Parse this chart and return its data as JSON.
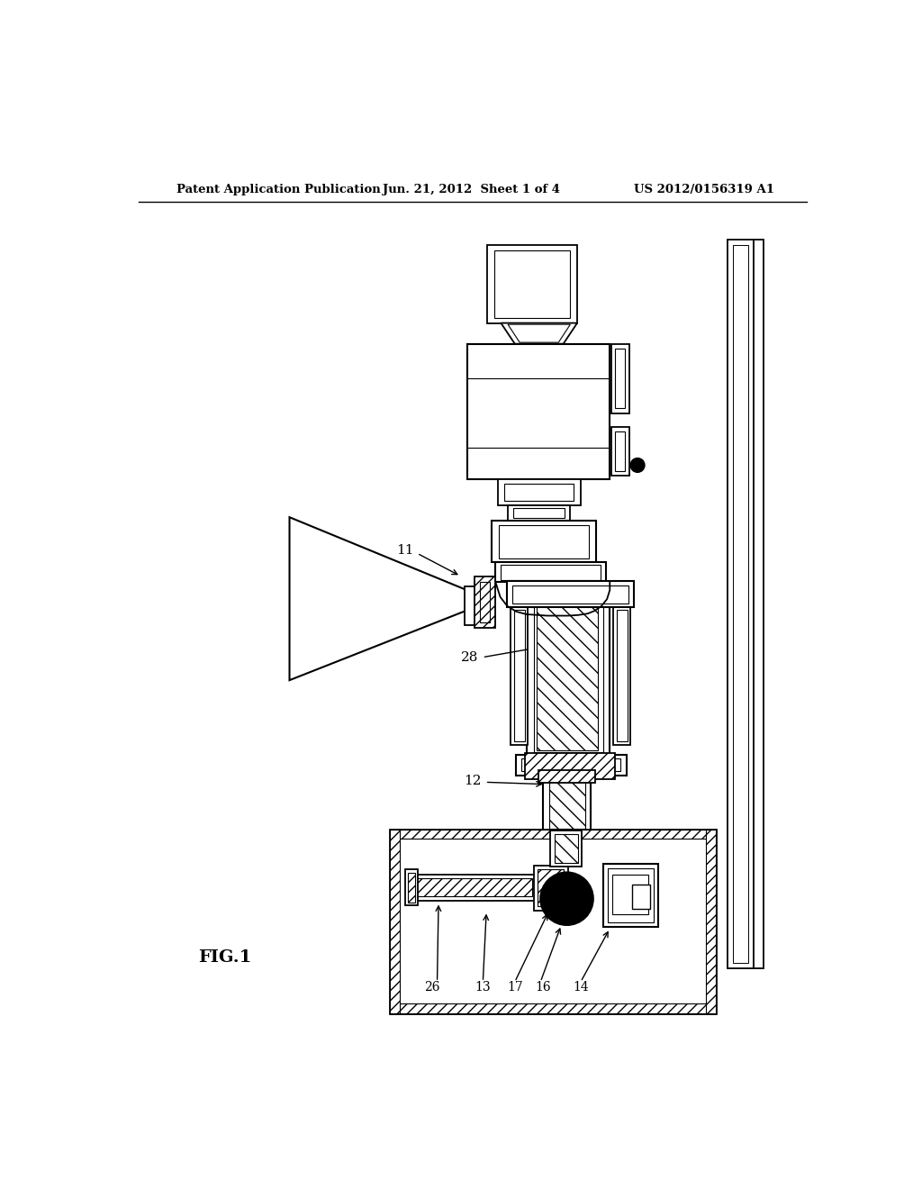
{
  "bg_color": "#ffffff",
  "line_color": "#000000",
  "header_left": "Patent Application Publication",
  "header_mid": "Jun. 21, 2012  Sheet 1 of 4",
  "header_right": "US 2012/0156319 A1",
  "fig_label": "FIG.1"
}
